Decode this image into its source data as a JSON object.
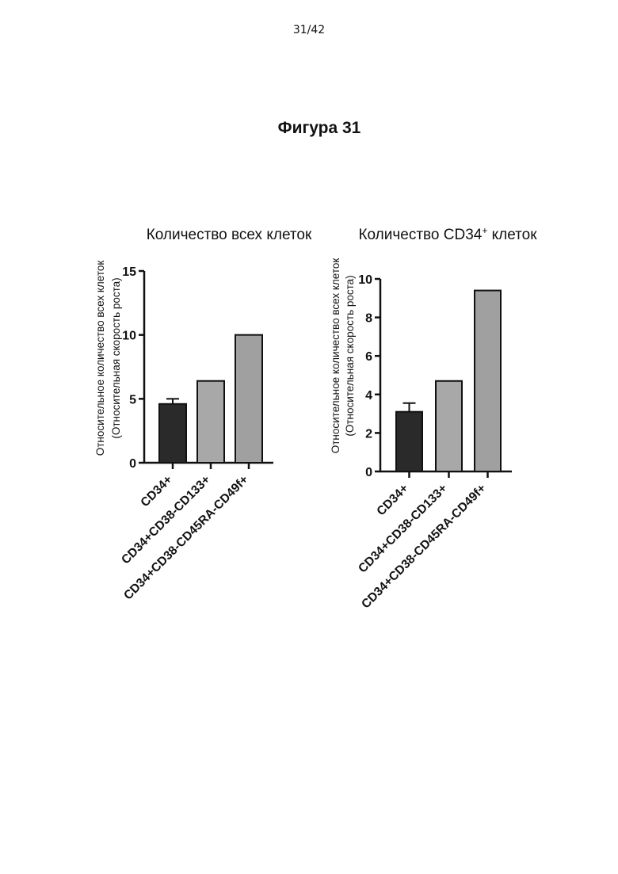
{
  "page": {
    "number": "31/42",
    "figure_title": "Фигура 31"
  },
  "colors": {
    "bar1": "#2a2a2a",
    "bar2": "#a8a8a8",
    "bar3": "#a0a0a0",
    "axis": "#111111"
  },
  "chart_data": [
    {
      "type": "bar",
      "title": "Количество всех клеток",
      "ylabel": [
        "Относительное количество всех клеток",
        "(Относительная скорость роста)"
      ],
      "categories": [
        "CD34+",
        "CD34+CD38-CD133+",
        "CD34+CD38-CD45RA-CD49f+"
      ],
      "values": [
        4.6,
        6.4,
        10.0
      ],
      "errors": [
        0.4,
        null,
        null
      ],
      "ylim": [
        0,
        15
      ],
      "yticks": [
        0,
        5,
        10,
        15
      ]
    },
    {
      "type": "bar",
      "title_main": "Количество CD34",
      "title_sup": "+",
      "title_end": " клеток",
      "ylabel": [
        "Относительное количество всех клеток",
        "(Относительная скорость роста)"
      ],
      "categories": [
        "CD34+",
        "CD34+CD38-CD133+",
        "CD34+CD38-CD45RA-CD49f+"
      ],
      "values": [
        3.1,
        4.7,
        9.4
      ],
      "errors": [
        0.45,
        null,
        null
      ],
      "ylim": [
        0,
        10
      ],
      "yticks": [
        0,
        2,
        4,
        6,
        8,
        10
      ]
    }
  ]
}
